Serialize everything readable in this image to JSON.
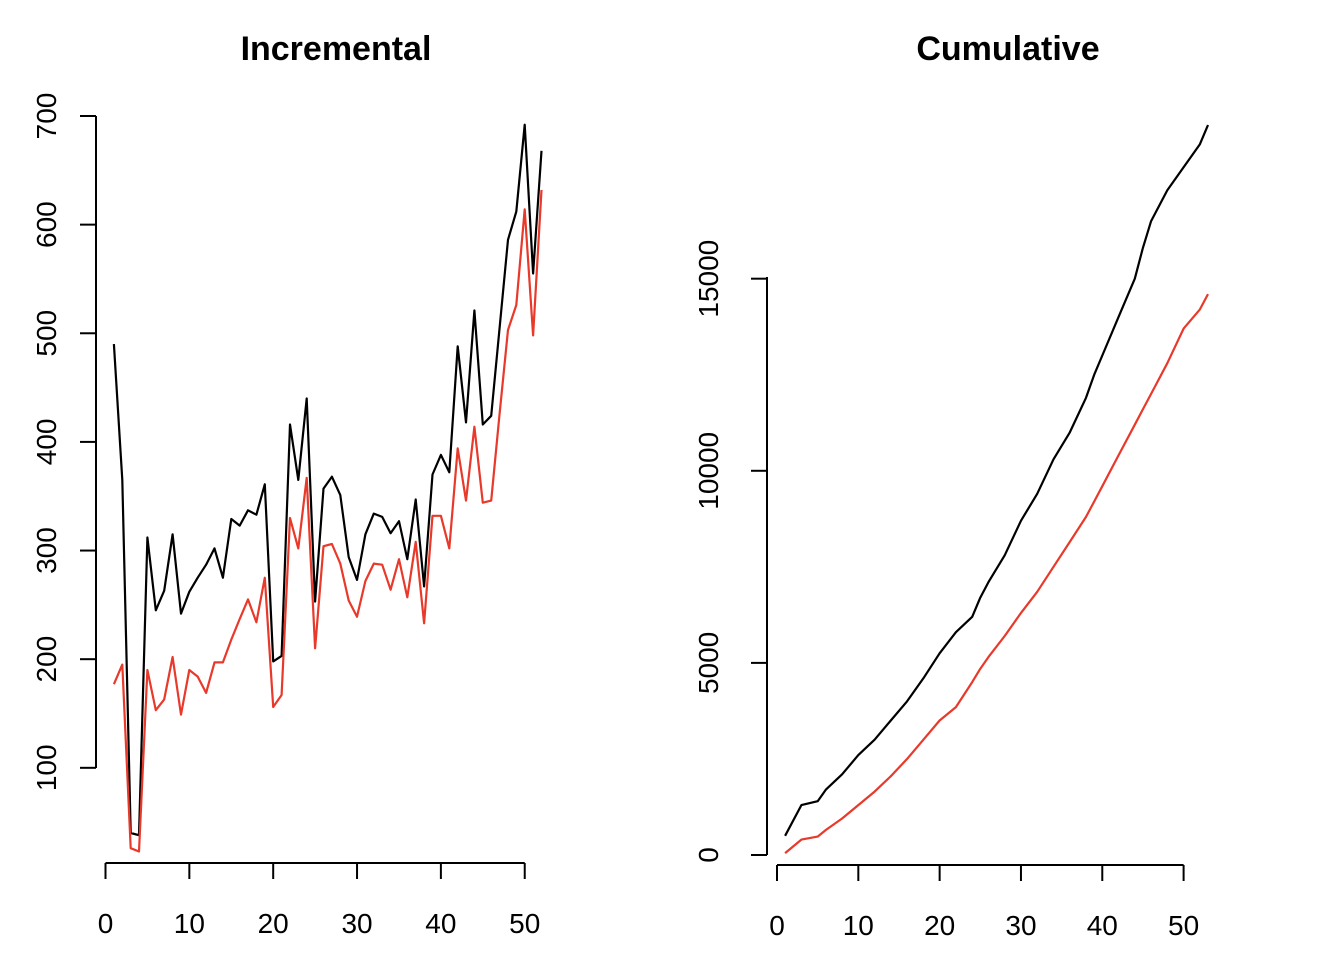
{
  "chart_data": [
    {
      "type": "line",
      "title": "Incremental",
      "xlabel": "",
      "ylabel": "",
      "xlim": [
        0,
        52
      ],
      "ylim": [
        40,
        700
      ],
      "x_ticks": [
        0,
        10,
        20,
        30,
        40,
        50
      ],
      "y_ticks": [
        100,
        200,
        300,
        400,
        500,
        600,
        700
      ],
      "x": [
        1,
        2,
        3,
        4,
        5,
        6,
        7,
        8,
        9,
        10,
        11,
        12,
        13,
        14,
        15,
        16,
        17,
        18,
        19,
        20,
        21,
        22,
        23,
        24,
        25,
        26,
        27,
        28,
        29,
        30,
        31,
        32,
        33,
        34,
        35,
        36,
        37,
        38,
        39,
        40,
        41,
        42,
        43,
        44,
        45,
        46,
        47,
        48,
        49,
        50,
        51,
        52
      ],
      "series": [
        {
          "color": "#000000",
          "values": [
            490,
            365,
            40,
            38,
            312,
            245,
            263,
            315,
            242,
            262,
            275,
            287,
            302,
            275,
            329,
            323,
            337,
            333,
            361,
            198,
            203,
            416,
            365,
            440,
            253,
            357,
            368,
            351,
            294,
            273,
            315,
            334,
            331,
            316,
            327,
            292,
            347,
            267,
            370,
            388,
            372,
            488,
            418,
            521,
            416,
            424,
            505,
            586,
            612,
            692,
            555,
            668
          ]
        },
        {
          "color": "#e8392a",
          "values": [
            177,
            195,
            26,
            23,
            190,
            153,
            163,
            202,
            149,
            190,
            184,
            169,
            197,
            197,
            218,
            237,
            255,
            234,
            275,
            156,
            167,
            330,
            302,
            367,
            210,
            304,
            306,
            288,
            254,
            239,
            272,
            288,
            287,
            264,
            292,
            257,
            308,
            233,
            332,
            332,
            302,
            394,
            346,
            414,
            344,
            346,
            426,
            503,
            526,
            614,
            498,
            632
          ]
        }
      ]
    },
    {
      "type": "line",
      "title": "Cumulative",
      "xlabel": "",
      "ylabel": "",
      "xlim": [
        0,
        53
      ],
      "ylim": [
        0,
        19000
      ],
      "x_ticks": [
        0,
        10,
        20,
        30,
        40,
        50
      ],
      "y_ticks": [
        0,
        5000,
        10000,
        15000
      ],
      "x": [
        1,
        3,
        5,
        6,
        8,
        10,
        12,
        14,
        16,
        18,
        20,
        22,
        24,
        25,
        26,
        28,
        30,
        32,
        34,
        36,
        38,
        39,
        40,
        42,
        44,
        45,
        46,
        48,
        50,
        52,
        53
      ],
      "series": [
        {
          "color": "#000000",
          "values": [
            500,
            1300,
            1400,
            1700,
            2100,
            2600,
            3000,
            3500,
            4000,
            4600,
            5250,
            5800,
            6200,
            6700,
            7100,
            7800,
            8700,
            9400,
            10300,
            11000,
            11900,
            12500,
            13000,
            14000,
            15000,
            15800,
            16500,
            17300,
            17900,
            18500,
            19000
          ]
        },
        {
          "color": "#e8392a",
          "values": [
            50,
            400,
            480,
            650,
            950,
            1300,
            1650,
            2050,
            2500,
            3000,
            3500,
            3850,
            4500,
            4850,
            5150,
            5700,
            6300,
            6850,
            7500,
            8150,
            8800,
            9200,
            9600,
            10400,
            11200,
            11600,
            12000,
            12800,
            13700,
            14200,
            14600
          ]
        }
      ]
    }
  ]
}
